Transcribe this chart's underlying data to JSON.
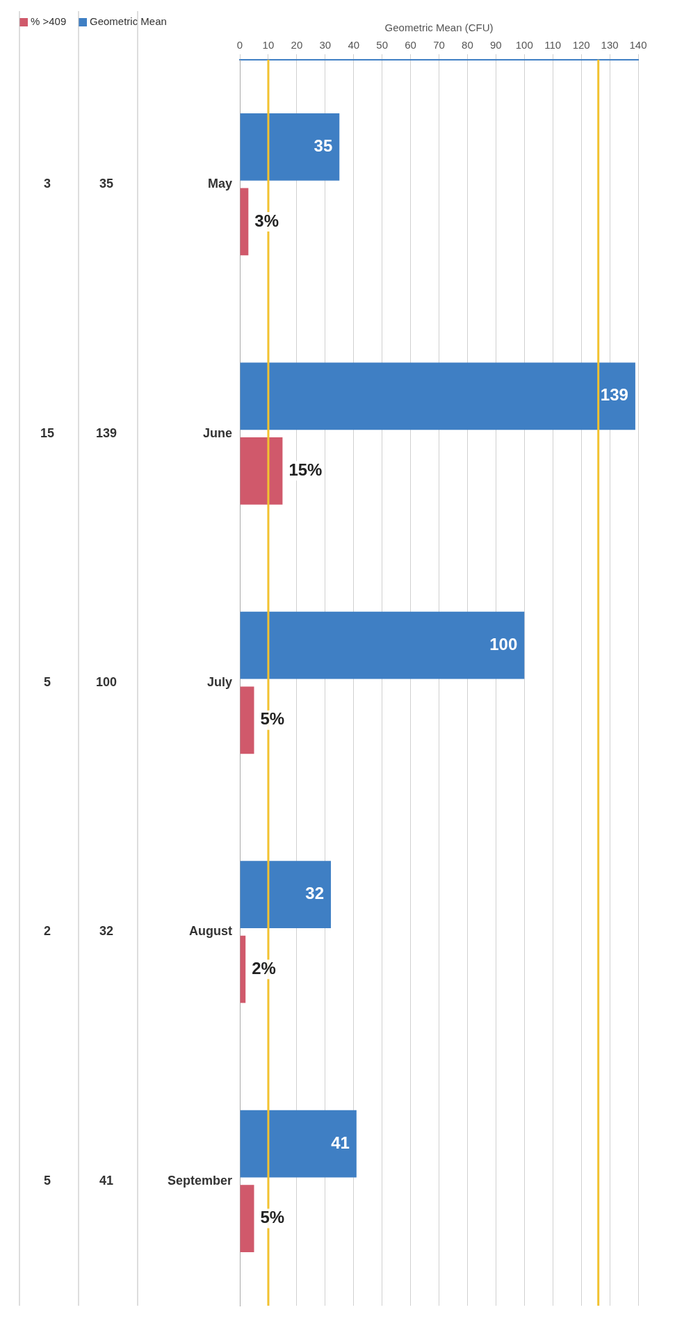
{
  "chart_data": {
    "type": "bar",
    "orientation": "horizontal",
    "xlabel": "Geometric Mean (CFU)",
    "categories": [
      "May",
      "June",
      "July",
      "August",
      "September"
    ],
    "series": [
      {
        "name": "Geometric Mean",
        "color": "#3f7fc4",
        "values": [
          35,
          139,
          100,
          32,
          41
        ],
        "value_labels": [
          "35",
          "139",
          "100",
          "32",
          "41"
        ]
      },
      {
        "name": "% >409",
        "color": "#d0596b",
        "values": [
          3,
          15,
          5,
          2,
          5
        ],
        "value_labels": [
          "3%",
          "15%",
          "5%",
          "2%",
          "5%"
        ]
      }
    ],
    "xlim": [
      0,
      140
    ],
    "xticks": [
      0,
      10,
      20,
      30,
      40,
      50,
      60,
      70,
      80,
      90,
      100,
      110,
      120,
      130,
      140
    ],
    "grid": "x",
    "ref_lines": [
      {
        "axis": "x",
        "value": 10,
        "color": "#f2c230"
      },
      {
        "axis": "x",
        "value": 126,
        "color": "#f2c230"
      }
    ],
    "annotations": [
      "35",
      "139",
      "100",
      "32",
      "41",
      "3",
      "15",
      "5",
      "2",
      "5"
    ],
    "legend": "left"
  }
}
